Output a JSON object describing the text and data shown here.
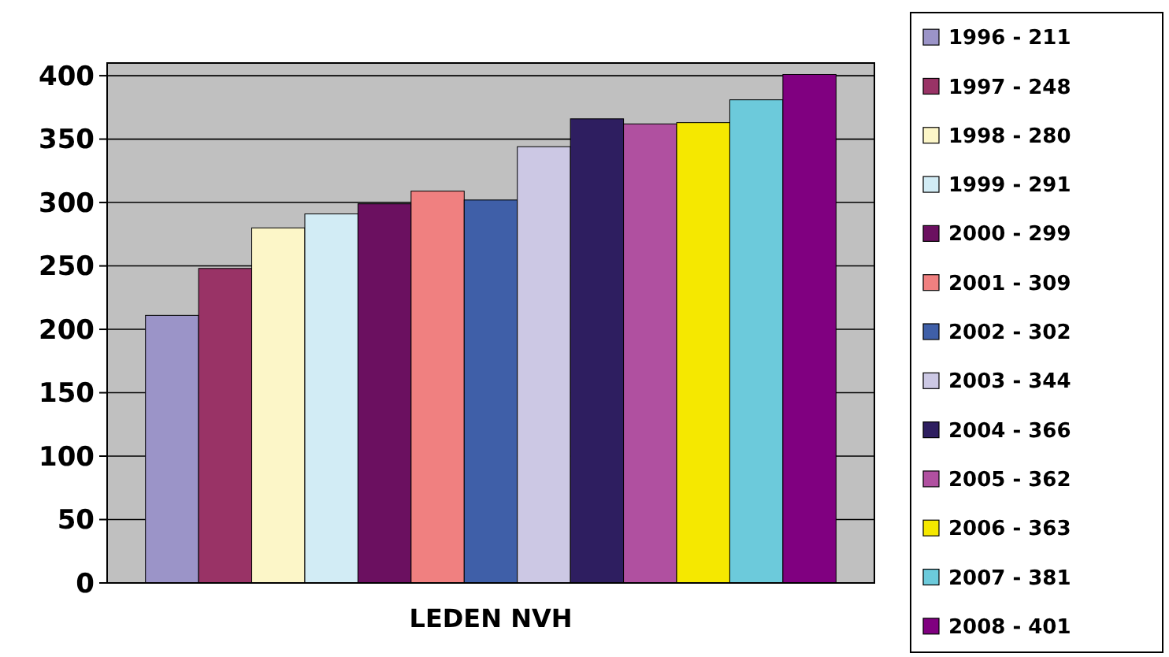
{
  "chart_data": {
    "type": "bar",
    "categories": [
      null
    ],
    "xlabel": "LEDEN NVH",
    "ylim": [
      0,
      410
    ],
    "yticks": [
      0,
      50,
      100,
      150,
      200,
      250,
      300,
      350,
      400
    ],
    "grid": "y",
    "legend": "right",
    "series": [
      {
        "name": "1996 - 211",
        "color": "#9b94c8",
        "values": [
          211
        ]
      },
      {
        "name": "1997 - 248",
        "color": "#993366",
        "values": [
          248
        ]
      },
      {
        "name": "1998 - 280",
        "color": "#fcf6c8",
        "values": [
          280
        ]
      },
      {
        "name": "1999 - 291",
        "color": "#d2ecf5",
        "values": [
          291
        ]
      },
      {
        "name": "2000 - 299",
        "color": "#6b1060",
        "values": [
          299
        ]
      },
      {
        "name": "2001 - 309",
        "color": "#f08080",
        "values": [
          309
        ]
      },
      {
        "name": "2002 - 302",
        "color": "#3f5fa8",
        "values": [
          302
        ]
      },
      {
        "name": "2003 - 344",
        "color": "#ccc8e4",
        "values": [
          344
        ]
      },
      {
        "name": "2004 - 366",
        "color": "#2e1e60",
        "values": [
          366
        ]
      },
      {
        "name": "2005 - 362",
        "color": "#b050a0",
        "values": [
          362
        ]
      },
      {
        "name": "2006 - 363",
        "color": "#f5e800",
        "values": [
          363
        ]
      },
      {
        "name": "2007 - 381",
        "color": "#6ccadb",
        "values": [
          381
        ]
      },
      {
        "name": "2008 - 401",
        "color": "#800080",
        "values": [
          401
        ]
      }
    ]
  }
}
